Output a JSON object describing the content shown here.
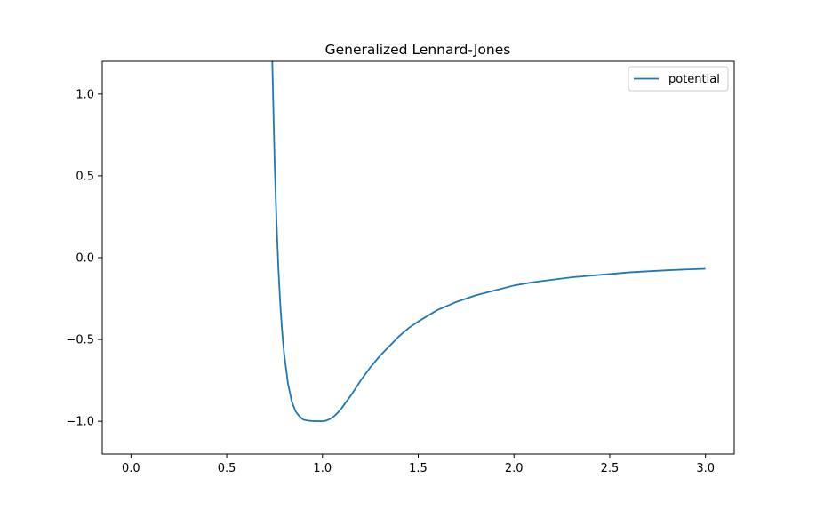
{
  "chart_data": {
    "type": "line",
    "title": "Generalized Lennard-Jones",
    "xlabel": "",
    "ylabel": "",
    "xlim": [
      -0.15,
      3.15
    ],
    "ylim": [
      -1.2,
      1.2
    ],
    "xticks": [
      0.0,
      0.5,
      1.0,
      1.5,
      2.0,
      2.5,
      3.0
    ],
    "xtick_labels": [
      "0.0",
      "0.5",
      "1.0",
      "1.5",
      "2.0",
      "2.5",
      "3.0"
    ],
    "yticks": [
      -1.0,
      -0.5,
      0.0,
      0.5,
      1.0
    ],
    "ytick_labels": [
      "−1.0",
      "−0.5",
      "0.0",
      "0.5",
      "1.0"
    ],
    "grid": false,
    "legend_position": "top-right",
    "series": [
      {
        "name": "potential",
        "color": "#1f77b4",
        "x": [
          0.738,
          0.75,
          0.76,
          0.77,
          0.78,
          0.79,
          0.8,
          0.82,
          0.84,
          0.86,
          0.88,
          0.9,
          0.92,
          0.94,
          0.96,
          0.98,
          1.0,
          1.02,
          1.04,
          1.06,
          1.08,
          1.1,
          1.15,
          1.2,
          1.25,
          1.3,
          1.35,
          1.4,
          1.45,
          1.5,
          1.6,
          1.7,
          1.8,
          1.9,
          2.0,
          2.1,
          2.2,
          2.3,
          2.4,
          2.5,
          2.6,
          2.7,
          2.8,
          2.9,
          3.0
        ],
        "y": [
          1.2,
          0.59,
          0.22,
          -0.07,
          -0.29,
          -0.46,
          -0.59,
          -0.77,
          -0.88,
          -0.94,
          -0.97,
          -0.99,
          -0.995,
          -0.998,
          -0.999,
          -0.9995,
          -1.0,
          -0.996,
          -0.985,
          -0.97,
          -0.948,
          -0.92,
          -0.84,
          -0.75,
          -0.67,
          -0.6,
          -0.54,
          -0.48,
          -0.43,
          -0.39,
          -0.32,
          -0.27,
          -0.23,
          -0.2,
          -0.17,
          -0.15,
          -0.135,
          -0.12,
          -0.11,
          -0.1,
          -0.09,
          -0.083,
          -0.077,
          -0.072,
          -0.068
        ]
      }
    ]
  }
}
